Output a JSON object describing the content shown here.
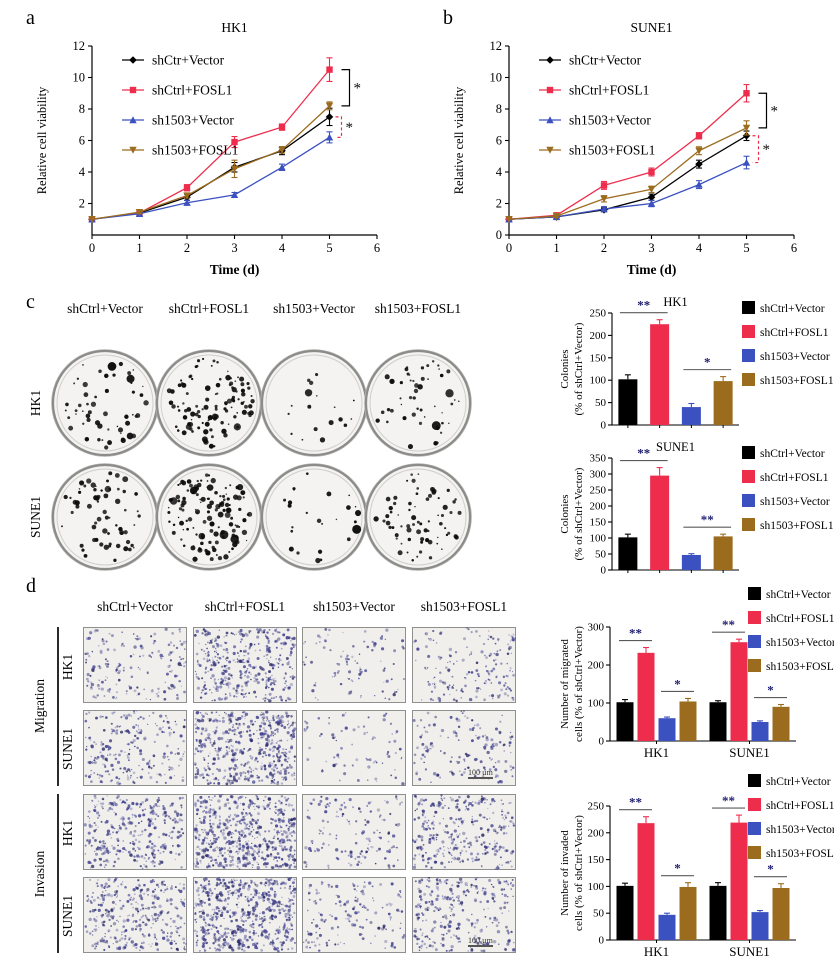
{
  "colors": {
    "black": "#000000",
    "red": "#ee2d4d",
    "blue": "#3b51c0",
    "brown": "#9c6c1e",
    "stain": "#41418f",
    "sig": "#1c1c6e"
  },
  "panels": {
    "a": {
      "label": "a"
    },
    "b": {
      "label": "b"
    },
    "c": {
      "label": "c",
      "column_headers": [
        "shCtrl+Vector",
        "shCtrl+FOSL1",
        "sh1503+Vector",
        "sh1503+FOSL1"
      ],
      "row_labels": [
        "HK1",
        "SUNE1"
      ],
      "dish_colony_counts": [
        [
          55,
          110,
          18,
          50
        ],
        [
          65,
          140,
          25,
          70
        ]
      ]
    },
    "d": {
      "label": "d",
      "column_headers": [
        "shCtrl+Vector",
        "shCtrl+FOSL1",
        "sh1503+Vector",
        "sh1503+FOSL1"
      ],
      "group_labels": [
        "Migration",
        "Invasion"
      ],
      "row_labels": [
        "HK1",
        "SUNE1",
        "HK1",
        "SUNE1"
      ],
      "cell_densities": [
        [
          140,
          320,
          70,
          140
        ],
        [
          180,
          420,
          60,
          120
        ],
        [
          260,
          480,
          110,
          240
        ],
        [
          280,
          500,
          120,
          230
        ]
      ],
      "scale_bar_text": "100 µm"
    }
  },
  "chart_data": [
    {
      "id": "panel_a",
      "type": "line",
      "title": "HK1",
      "xlabel": "Time (d)",
      "ylabel": "Relative cell viability",
      "xlim": [
        0,
        6
      ],
      "ylim": [
        0,
        12
      ],
      "x": [
        0,
        1,
        2,
        3,
        4,
        5
      ],
      "xticks": [
        0,
        1,
        2,
        3,
        4,
        5,
        6
      ],
      "yticks": [
        2,
        4,
        6,
        8,
        10,
        12
      ],
      "grid": false,
      "legend_position": "top-left-inside",
      "series": [
        {
          "name": "shCtr+Vector",
          "color": "black",
          "marker": "diamond",
          "values": [
            1.0,
            1.4,
            2.4,
            4.3,
            5.35,
            7.5
          ],
          "errors": [
            0.05,
            0.1,
            0.2,
            0.3,
            0.25,
            0.55
          ]
        },
        {
          "name": "shCtrl+FOSL1",
          "color": "red",
          "marker": "square",
          "values": [
            1.0,
            1.4,
            3.0,
            5.9,
            6.85,
            10.5
          ],
          "errors": [
            0.05,
            0.1,
            0.2,
            0.35,
            0.2,
            0.75
          ]
        },
        {
          "name": "sh1503+Vector",
          "color": "blue",
          "marker": "triangle",
          "values": [
            1.0,
            1.35,
            2.05,
            2.55,
            4.3,
            6.2
          ],
          "errors": [
            0.05,
            0.08,
            0.15,
            0.15,
            0.2,
            0.35
          ]
        },
        {
          "name": "sh1503+FOSL1",
          "color": "brown",
          "marker": "triangle-down",
          "values": [
            1.0,
            1.45,
            2.5,
            4.2,
            5.4,
            8.2
          ],
          "errors": [
            0.05,
            0.1,
            0.15,
            0.55,
            0.2,
            0.25
          ]
        }
      ],
      "brackets": [
        {
          "at_x": 5,
          "from_series": 1,
          "to_series": 3,
          "style": "solid",
          "color": "black",
          "label": "*"
        },
        {
          "at_x": 5,
          "from_series": 0,
          "to_series": 2,
          "style": "dashed",
          "color": "red",
          "label": "*"
        }
      ]
    },
    {
      "id": "panel_b",
      "type": "line",
      "title": "SUNE1",
      "xlabel": "Time (d)",
      "ylabel": "Relative cell viability",
      "xlim": [
        0,
        6
      ],
      "ylim": [
        0,
        12
      ],
      "x": [
        0,
        1,
        2,
        3,
        4,
        5
      ],
      "xticks": [
        0,
        1,
        2,
        3,
        4,
        5,
        6
      ],
      "yticks": [
        0,
        2,
        4,
        6,
        8,
        10,
        12
      ],
      "grid": false,
      "legend_position": "top-left-inside",
      "series": [
        {
          "name": "shCtr+Vector",
          "color": "black",
          "marker": "diamond",
          "values": [
            1.0,
            1.15,
            1.6,
            2.4,
            4.5,
            6.3
          ],
          "errors": [
            0.05,
            0.08,
            0.12,
            0.2,
            0.25,
            0.3
          ]
        },
        {
          "name": "shCtrl+FOSL1",
          "color": "red",
          "marker": "square",
          "values": [
            1.0,
            1.25,
            3.15,
            4.0,
            6.3,
            9.0
          ],
          "errors": [
            0.05,
            0.08,
            0.25,
            0.25,
            0.2,
            0.55
          ]
        },
        {
          "name": "sh1503+Vector",
          "color": "blue",
          "marker": "triangle",
          "values": [
            1.0,
            1.15,
            1.65,
            2.0,
            3.2,
            4.6
          ],
          "errors": [
            0.05,
            0.08,
            0.15,
            0.2,
            0.25,
            0.4
          ]
        },
        {
          "name": "sh1503+FOSL1",
          "color": "brown",
          "marker": "triangle-down",
          "values": [
            1.0,
            1.2,
            2.3,
            2.9,
            5.35,
            6.8
          ],
          "errors": [
            0.05,
            0.08,
            0.2,
            0.2,
            0.25,
            0.45
          ]
        }
      ],
      "brackets": [
        {
          "at_x": 5,
          "from_series": 1,
          "to_series": 3,
          "style": "solid",
          "color": "black",
          "label": "*"
        },
        {
          "at_x": 5,
          "from_series": 0,
          "to_series": 2,
          "style": "dashed",
          "color": "red",
          "label": "*"
        }
      ]
    },
    {
      "id": "colonies_hk1",
      "type": "bar",
      "title": "HK1",
      "ylabel_lines": [
        "Colonies",
        "(% of shCtrl+Vector)"
      ],
      "ylim": [
        0,
        250
      ],
      "yticks": [
        0,
        50,
        100,
        150,
        200,
        250
      ],
      "categories": [
        "shCtrl+Vector",
        "shCtrl+FOSL1",
        "sh1503+Vector",
        "sh1503+FOSL1"
      ],
      "bar_colors": [
        "black",
        "red",
        "blue",
        "brown"
      ],
      "values": [
        102,
        225,
        40,
        98
      ],
      "errors": [
        10,
        10,
        8,
        10
      ],
      "legend": [
        "shCtrl+Vector",
        "shCtrl+FOSL1",
        "sh1503+Vector",
        "sh1503+FOSL1"
      ],
      "legend_position": "right",
      "significance": [
        {
          "bars": [
            0,
            1
          ],
          "label": "**"
        },
        {
          "bars": [
            2,
            3
          ],
          "label": "*"
        }
      ]
    },
    {
      "id": "colonies_sune1",
      "type": "bar",
      "title": "SUNE1",
      "ylabel_lines": [
        "Colonies",
        "(% of shCtrl+Vector)"
      ],
      "ylim": [
        0,
        350
      ],
      "yticks": [
        0,
        50,
        100,
        150,
        200,
        250,
        300,
        350
      ],
      "categories": [
        "shCtrl+Vector",
        "shCtrl+FOSL1",
        "sh1503+Vector",
        "sh1503+FOSL1"
      ],
      "bar_colors": [
        "black",
        "red",
        "blue",
        "brown"
      ],
      "values": [
        102,
        295,
        47,
        105
      ],
      "errors": [
        10,
        25,
        4,
        7
      ],
      "legend": [
        "shCtrl+Vector",
        "shCtrl+FOSL1",
        "sh1503+Vector",
        "sh1503+FOSL1"
      ],
      "legend_position": "right",
      "significance": [
        {
          "bars": [
            0,
            1
          ],
          "label": "**"
        },
        {
          "bars": [
            2,
            3
          ],
          "label": "**"
        }
      ]
    },
    {
      "id": "migration",
      "type": "grouped-bar",
      "title": "",
      "ylabel_lines": [
        "Number of migrated",
        "cells (% of shCtrl+Vector)"
      ],
      "ylim": [
        0,
        300
      ],
      "yticks": [
        0,
        100,
        200,
        300
      ],
      "categories": [
        "HK1",
        "SUNE1"
      ],
      "series": [
        {
          "name": "shCtrl+Vector",
          "color": "black",
          "values": [
            102,
            102
          ],
          "errors": [
            7,
            4
          ]
        },
        {
          "name": "shCtrl+FOSL1",
          "color": "red",
          "values": [
            232,
            260
          ],
          "errors": [
            14,
            8
          ]
        },
        {
          "name": "sh1503+Vector",
          "color": "blue",
          "values": [
            60,
            50
          ],
          "errors": [
            3,
            3
          ]
        },
        {
          "name": "sh1503+FOSL1",
          "color": "brown",
          "values": [
            104,
            90
          ],
          "errors": [
            8,
            6
          ]
        }
      ],
      "legend": [
        "shCtrl+Vector",
        "shCtrl+FOSL1",
        "sh1503+Vector",
        "sh1503+FOSL1"
      ],
      "legend_position": "top-right",
      "significance": [
        {
          "group": 0,
          "series": [
            0,
            1
          ],
          "label": "**"
        },
        {
          "group": 0,
          "series": [
            2,
            3
          ],
          "label": "*"
        },
        {
          "group": 1,
          "series": [
            0,
            1
          ],
          "label": "**"
        },
        {
          "group": 1,
          "series": [
            2,
            3
          ],
          "label": "*"
        }
      ]
    },
    {
      "id": "invasion",
      "type": "grouped-bar",
      "title": "",
      "ylabel_lines": [
        "Number of invaded",
        "cells (% of shCtrl+Vector)"
      ],
      "ylim": [
        0,
        250
      ],
      "yticks": [
        0,
        50,
        100,
        150,
        200,
        250
      ],
      "categories": [
        "HK1",
        "SUNE1"
      ],
      "series": [
        {
          "name": "shCtrl+Vector",
          "color": "black",
          "values": [
            101,
            101
          ],
          "errors": [
            5,
            6
          ]
        },
        {
          "name": "shCtrl+FOSL1",
          "color": "red",
          "values": [
            218,
            219
          ],
          "errors": [
            12,
            14
          ]
        },
        {
          "name": "sh1503+Vector",
          "color": "blue",
          "values": [
            47,
            52
          ],
          "errors": [
            3,
            3
          ]
        },
        {
          "name": "sh1503+FOSL1",
          "color": "brown",
          "values": [
            99,
            97
          ],
          "errors": [
            8,
            8
          ]
        }
      ],
      "legend": [
        "shCtrl+Vector",
        "shCtrl+FOSL1",
        "sh1503+Vector",
        "sh1503+FOSL1"
      ],
      "legend_position": "top-right",
      "significance": [
        {
          "group": 0,
          "series": [
            0,
            1
          ],
          "label": "**"
        },
        {
          "group": 0,
          "series": [
            2,
            3
          ],
          "label": "*"
        },
        {
          "group": 1,
          "series": [
            0,
            1
          ],
          "label": "**"
        },
        {
          "group": 1,
          "series": [
            2,
            3
          ],
          "label": "*"
        }
      ]
    }
  ]
}
